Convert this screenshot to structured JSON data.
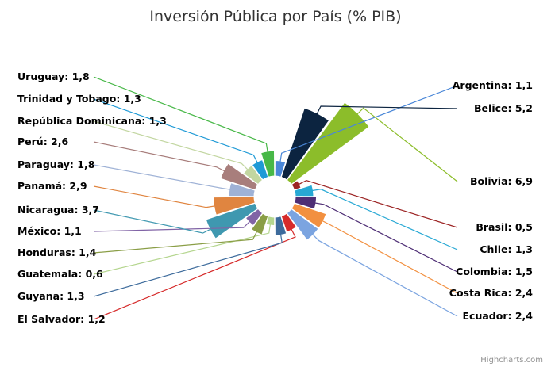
{
  "chart_data": {
    "type": "pie",
    "subtype": "variable-radius-donut",
    "title": "Inversión Pública por País (% PIB)",
    "unit": "% PIB",
    "decimal_separator": ",",
    "slices": [
      {
        "name": "Argentina",
        "value": 1.1,
        "color": "#4a87d8"
      },
      {
        "name": "Belice",
        "value": 5.2,
        "color": "#0c2440"
      },
      {
        "name": "Bolivia",
        "value": 6.9,
        "color": "#8cbd2a"
      },
      {
        "name": "Brasil",
        "value": 0.5,
        "color": "#9c2424"
      },
      {
        "name": "Chile",
        "value": 1.3,
        "color": "#27a8d4"
      },
      {
        "name": "Colombia",
        "value": 1.5,
        "color": "#4e2e75"
      },
      {
        "name": "Costa Rica",
        "value": 2.4,
        "color": "#f29040"
      },
      {
        "name": "Ecuador",
        "value": 2.4,
        "color": "#7ba4e0"
      },
      {
        "name": "El Salvador",
        "value": 1.2,
        "color": "#d62b2b"
      },
      {
        "name": "Guyana",
        "value": 1.3,
        "color": "#3d6b9c"
      },
      {
        "name": "Guatemala",
        "value": 0.6,
        "color": "#b5d68f"
      },
      {
        "name": "Honduras",
        "value": 1.4,
        "color": "#8a9e46"
      },
      {
        "name": "México",
        "value": 1.1,
        "color": "#8164a6"
      },
      {
        "name": "Nicaragua",
        "value": 3.7,
        "color": "#3f98b0"
      },
      {
        "name": "Panamá",
        "value": 2.9,
        "color": "#e08540"
      },
      {
        "name": "Paraguay",
        "value": 1.8,
        "color": "#9fb2d6"
      },
      {
        "name": "Perú",
        "value": 2.6,
        "color": "#a87e7c"
      },
      {
        "name": "República Dominicana",
        "value": 1.3,
        "color": "#c2d6a0"
      },
      {
        "name": "Trinidad y Tobago",
        "value": 1.3,
        "color": "#1f9ad6"
      },
      {
        "name": "Uruguay",
        "value": 1.8,
        "color": "#48b848"
      }
    ],
    "radius_max_value": 6.9,
    "legend": "none",
    "data_labels": "outside-with-connectors",
    "credit": "Highcharts.com"
  }
}
